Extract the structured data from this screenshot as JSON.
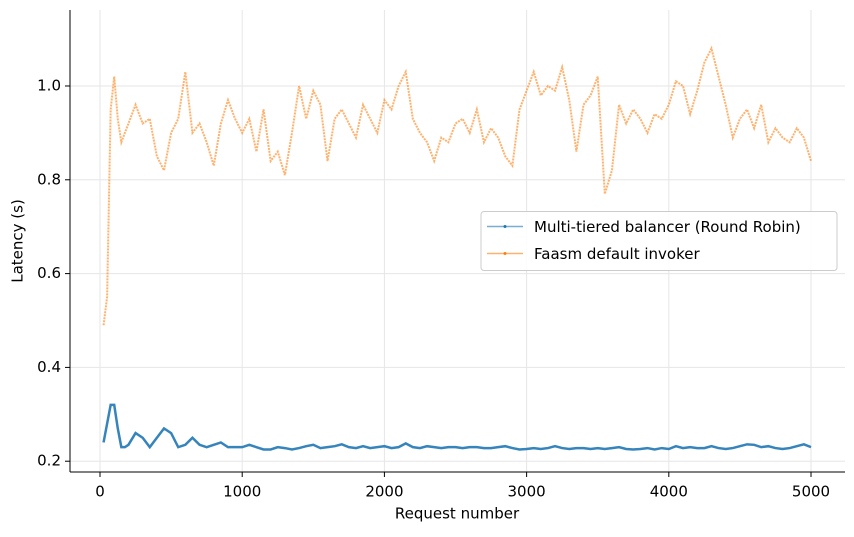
{
  "chart_data": {
    "type": "line",
    "x_label": "Request number",
    "y_label": "Latency (s)",
    "x": [
      25,
      50,
      75,
      100,
      125,
      150,
      175,
      200,
      250,
      300,
      350,
      400,
      450,
      500,
      550,
      600,
      650,
      700,
      750,
      800,
      850,
      900,
      950,
      1000,
      1050,
      1100,
      1150,
      1200,
      1250,
      1300,
      1350,
      1400,
      1450,
      1500,
      1550,
      1600,
      1650,
      1700,
      1750,
      1800,
      1850,
      1900,
      1950,
      2000,
      2050,
      2100,
      2150,
      2200,
      2250,
      2300,
      2350,
      2400,
      2450,
      2500,
      2550,
      2600,
      2650,
      2700,
      2750,
      2800,
      2850,
      2900,
      2950,
      3000,
      3050,
      3100,
      3150,
      3200,
      3250,
      3300,
      3350,
      3400,
      3450,
      3500,
      3550,
      3600,
      3650,
      3700,
      3750,
      3800,
      3850,
      3900,
      3950,
      4000,
      4050,
      4100,
      4150,
      4200,
      4250,
      4300,
      4350,
      4400,
      4450,
      4500,
      4550,
      4600,
      4650,
      4700,
      4750,
      4800,
      4850,
      4900,
      4950,
      5000
    ],
    "series": [
      {
        "name": "Multi-tiered balancer (Round Robin)",
        "color": "#1f77b4",
        "values": [
          0.24,
          0.28,
          0.32,
          0.32,
          0.27,
          0.23,
          0.23,
          0.235,
          0.26,
          0.25,
          0.23,
          0.25,
          0.27,
          0.26,
          0.23,
          0.235,
          0.25,
          0.235,
          0.23,
          0.235,
          0.24,
          0.23,
          0.23,
          0.23,
          0.235,
          0.23,
          0.225,
          0.225,
          0.23,
          0.228,
          0.225,
          0.228,
          0.232,
          0.235,
          0.228,
          0.23,
          0.232,
          0.236,
          0.23,
          0.228,
          0.232,
          0.228,
          0.23,
          0.232,
          0.228,
          0.23,
          0.238,
          0.23,
          0.228,
          0.232,
          0.23,
          0.228,
          0.23,
          0.23,
          0.228,
          0.23,
          0.23,
          0.228,
          0.228,
          0.23,
          0.232,
          0.228,
          0.225,
          0.226,
          0.228,
          0.226,
          0.228,
          0.232,
          0.228,
          0.226,
          0.228,
          0.228,
          0.226,
          0.228,
          0.226,
          0.228,
          0.23,
          0.226,
          0.225,
          0.226,
          0.228,
          0.225,
          0.228,
          0.226,
          0.232,
          0.228,
          0.23,
          0.228,
          0.228,
          0.232,
          0.228,
          0.226,
          0.228,
          0.232,
          0.236,
          0.235,
          0.23,
          0.232,
          0.228,
          0.226,
          0.228,
          0.232,
          0.236,
          0.23
        ]
      },
      {
        "name": "Faasm default invoker",
        "color": "#ff7f0e",
        "values": [
          0.49,
          0.55,
          0.95,
          1.02,
          0.93,
          0.88,
          0.9,
          0.92,
          0.96,
          0.92,
          0.93,
          0.85,
          0.82,
          0.9,
          0.93,
          1.03,
          0.9,
          0.92,
          0.88,
          0.83,
          0.92,
          0.97,
          0.93,
          0.9,
          0.93,
          0.86,
          0.95,
          0.84,
          0.86,
          0.81,
          0.9,
          1.0,
          0.93,
          0.99,
          0.96,
          0.84,
          0.93,
          0.95,
          0.92,
          0.89,
          0.96,
          0.93,
          0.9,
          0.97,
          0.95,
          1.0,
          1.03,
          0.93,
          0.9,
          0.88,
          0.84,
          0.89,
          0.88,
          0.92,
          0.93,
          0.9,
          0.95,
          0.88,
          0.91,
          0.89,
          0.85,
          0.83,
          0.95,
          0.99,
          1.03,
          0.98,
          1.0,
          0.99,
          1.04,
          0.97,
          0.86,
          0.96,
          0.98,
          1.02,
          0.77,
          0.82,
          0.96,
          0.92,
          0.95,
          0.93,
          0.9,
          0.94,
          0.93,
          0.96,
          1.01,
          1.0,
          0.94,
          0.99,
          1.05,
          1.08,
          1.02,
          0.96,
          0.89,
          0.93,
          0.95,
          0.91,
          0.96,
          0.88,
          0.91,
          0.89,
          0.88,
          0.91,
          0.89,
          0.84
        ]
      }
    ],
    "xlim": [
      -211,
      5239
    ],
    "ylim": [
      0.177,
      1.162
    ],
    "xticks": [
      0,
      1000,
      2000,
      3000,
      4000,
      5000
    ],
    "yticks": [
      0.2,
      0.4,
      0.6,
      0.8,
      {
        "value": 1,
        "label": "1.0"
      }
    ],
    "grid": true,
    "legend": "center right"
  }
}
